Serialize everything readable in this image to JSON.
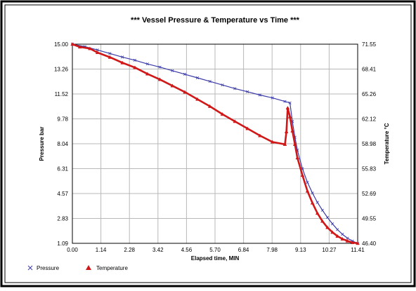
{
  "chart_data": {
    "type": "line",
    "title": "*** Vessel Pressure & Temperature vs  Time ***",
    "xlabel": "Elapsed time, MIN",
    "ylabel_left": "Pressure bar",
    "ylabel_right": "Temperature  °C",
    "xlim": [
      0.0,
      11.41
    ],
    "ylim_left": [
      1.09,
      15.0
    ],
    "ylim_right": [
      46.4,
      71.55
    ],
    "x_ticks": [
      "0.00",
      "1.14",
      "2.28",
      "3.42",
      "4.56",
      "5.70",
      "6.84",
      "7.98",
      "9.13",
      "10.27",
      "11.41"
    ],
    "y_left_ticks": [
      "15.00",
      "13.26",
      "11.52",
      "9.78",
      "8.04",
      "6.31",
      "4.57",
      "2.83",
      "1.09"
    ],
    "y_right_ticks": [
      "71.55",
      "68.41",
      "65.26",
      "62.12",
      "58.98",
      "55.83",
      "52.69",
      "49.55",
      "46.40"
    ],
    "grid": true,
    "legend_position": "bottom-left",
    "series": [
      {
        "name": "Pressure",
        "axis": "left",
        "color": "#3a3aa8",
        "marker": "x",
        "x": [
          0.0,
          0.5,
          1.0,
          1.5,
          2.0,
          2.5,
          3.0,
          3.5,
          4.0,
          4.5,
          5.0,
          5.5,
          6.0,
          6.5,
          7.0,
          7.5,
          8.0,
          8.5,
          8.7,
          8.8,
          8.9,
          9.0,
          9.2,
          9.4,
          9.6,
          9.8,
          10.0,
          10.2,
          10.4,
          10.6,
          10.8,
          11.0,
          11.2,
          11.41
        ],
        "y": [
          15.0,
          14.83,
          14.6,
          14.35,
          14.1,
          13.88,
          13.62,
          13.4,
          13.15,
          12.9,
          12.65,
          12.4,
          12.15,
          11.9,
          11.68,
          11.45,
          11.25,
          11.0,
          10.9,
          9.6,
          8.5,
          7.6,
          6.3,
          5.35,
          4.6,
          3.95,
          3.4,
          2.9,
          2.45,
          2.05,
          1.72,
          1.45,
          1.25,
          1.09
        ]
      },
      {
        "name": "Temperature",
        "axis": "right",
        "color": "#d01818",
        "marker": "triangle",
        "x": [
          0.0,
          0.3,
          0.7,
          1.0,
          1.5,
          2.0,
          2.5,
          3.0,
          3.5,
          4.0,
          4.5,
          5.0,
          5.5,
          6.0,
          6.5,
          7.0,
          7.5,
          8.0,
          8.5,
          8.56,
          8.61,
          8.7,
          8.8,
          8.9,
          9.0,
          9.2,
          9.4,
          9.6,
          9.8,
          10.0,
          10.2,
          10.4,
          10.6,
          10.8,
          11.0,
          11.2,
          11.41
        ],
        "y": [
          71.55,
          71.2,
          71.0,
          70.5,
          69.9,
          69.2,
          68.6,
          67.8,
          67.1,
          66.3,
          65.5,
          64.6,
          63.7,
          62.7,
          61.8,
          60.9,
          60.0,
          59.2,
          58.9,
          60.5,
          63.5,
          62.4,
          60.6,
          58.9,
          57.2,
          55.0,
          53.0,
          51.5,
          50.2,
          49.2,
          48.4,
          47.8,
          47.3,
          46.95,
          46.7,
          46.5,
          46.4
        ]
      }
    ]
  }
}
